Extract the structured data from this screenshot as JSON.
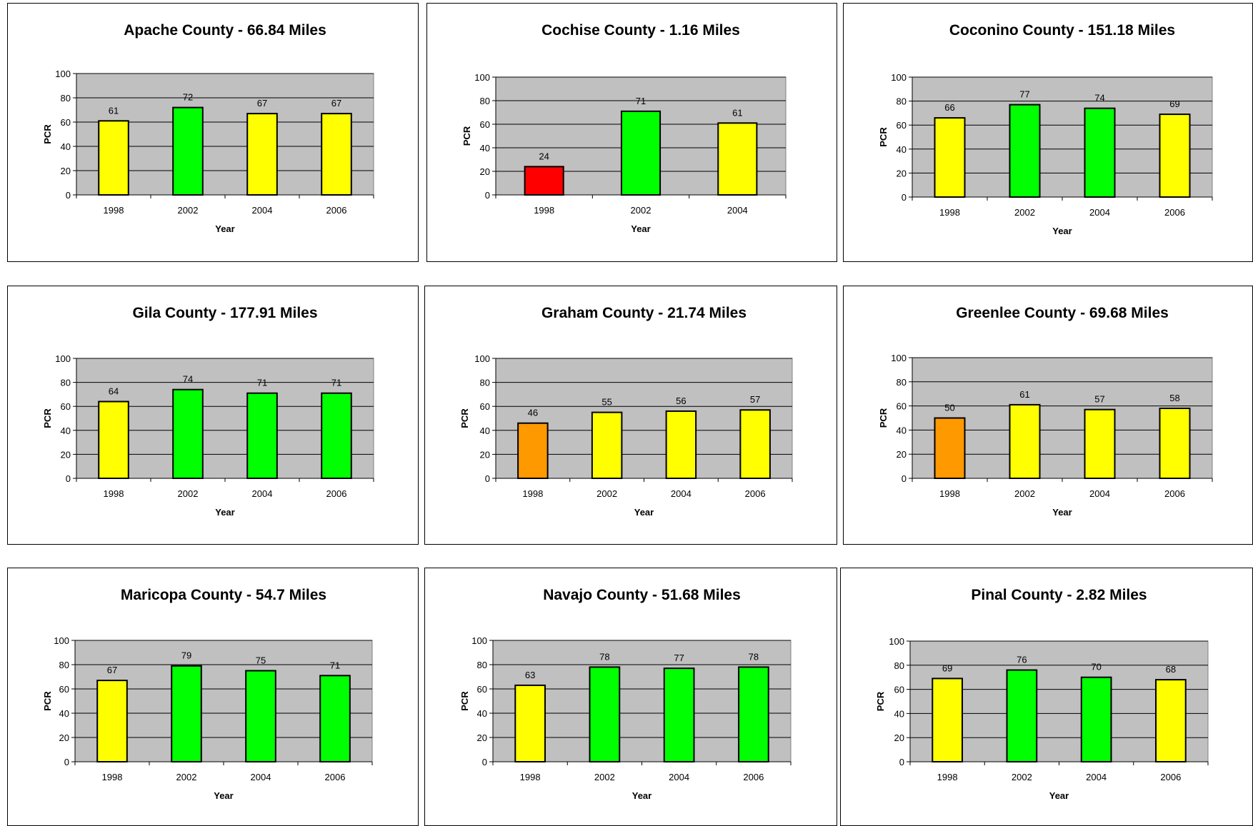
{
  "chart_data": [
    {
      "type": "bar",
      "title": "Apache County - 66.84 Miles",
      "xlabel": "Year",
      "ylabel": "PCR",
      "ylim": [
        0,
        100
      ],
      "yticks": [
        0,
        20,
        40,
        60,
        80,
        100
      ],
      "categories": [
        "1998",
        "2002",
        "2004",
        "2006"
      ],
      "values": [
        61,
        72,
        67,
        67
      ],
      "colors": [
        "#ffff00",
        "#00ff00",
        "#ffff00",
        "#ffff00"
      ],
      "grid": true
    },
    {
      "type": "bar",
      "title": "Cochise County - 1.16 Miles",
      "xlabel": "Year",
      "ylabel": "PCR",
      "ylim": [
        0,
        100
      ],
      "yticks": [
        0,
        20,
        40,
        60,
        80,
        100
      ],
      "categories": [
        "1998",
        "2002",
        "2004"
      ],
      "values": [
        24,
        71,
        61
      ],
      "colors": [
        "#ff0000",
        "#00ff00",
        "#ffff00"
      ],
      "grid": true
    },
    {
      "type": "bar",
      "title": "Coconino County - 151.18 Miles",
      "xlabel": "Year",
      "ylabel": "PCR",
      "ylim": [
        0,
        100
      ],
      "yticks": [
        0,
        20,
        40,
        60,
        80,
        100
      ],
      "categories": [
        "1998",
        "2002",
        "2004",
        "2006"
      ],
      "values": [
        66,
        77,
        74,
        69
      ],
      "colors": [
        "#ffff00",
        "#00ff00",
        "#00ff00",
        "#ffff00"
      ],
      "grid": true
    },
    {
      "type": "bar",
      "title": "Gila County - 177.91 Miles",
      "xlabel": "Year",
      "ylabel": "PCR",
      "ylim": [
        0,
        100
      ],
      "yticks": [
        0,
        20,
        40,
        60,
        80,
        100
      ],
      "categories": [
        "1998",
        "2002",
        "2004",
        "2006"
      ],
      "values": [
        64,
        74,
        71,
        71
      ],
      "colors": [
        "#ffff00",
        "#00ff00",
        "#00ff00",
        "#00ff00"
      ],
      "grid": true
    },
    {
      "type": "bar",
      "title": "Graham County - 21.74 Miles",
      "xlabel": "Year",
      "ylabel": "PCR",
      "ylim": [
        0,
        100
      ],
      "yticks": [
        0,
        20,
        40,
        60,
        80,
        100
      ],
      "categories": [
        "1998",
        "2002",
        "2004",
        "2006"
      ],
      "values": [
        46,
        55,
        56,
        57
      ],
      "colors": [
        "#ff9900",
        "#ffff00",
        "#ffff00",
        "#ffff00"
      ],
      "grid": true
    },
    {
      "type": "bar",
      "title": "Greenlee County - 69.68 Miles",
      "xlabel": "Year",
      "ylabel": "PCR",
      "ylim": [
        0,
        100
      ],
      "yticks": [
        0,
        20,
        40,
        60,
        80,
        100
      ],
      "categories": [
        "1998",
        "2002",
        "2004",
        "2006"
      ],
      "values": [
        50,
        61,
        57,
        58
      ],
      "colors": [
        "#ff9900",
        "#ffff00",
        "#ffff00",
        "#ffff00"
      ],
      "grid": true
    },
    {
      "type": "bar",
      "title": "Maricopa County - 54.7 Miles",
      "xlabel": "Year",
      "ylabel": "PCR",
      "ylim": [
        0,
        100
      ],
      "yticks": [
        0,
        20,
        40,
        60,
        80,
        100
      ],
      "categories": [
        "1998",
        "2002",
        "2004",
        "2006"
      ],
      "values": [
        67,
        79,
        75,
        71
      ],
      "colors": [
        "#ffff00",
        "#00ff00",
        "#00ff00",
        "#00ff00"
      ],
      "grid": true
    },
    {
      "type": "bar",
      "title": "Navajo County - 51.68 Miles",
      "xlabel": "Year",
      "ylabel": "PCR",
      "ylim": [
        0,
        100
      ],
      "yticks": [
        0,
        20,
        40,
        60,
        80,
        100
      ],
      "categories": [
        "1998",
        "2002",
        "2004",
        "2006"
      ],
      "values": [
        63,
        78,
        77,
        78
      ],
      "colors": [
        "#ffff00",
        "#00ff00",
        "#00ff00",
        "#00ff00"
      ],
      "grid": true
    },
    {
      "type": "bar",
      "title": "Pinal County - 2.82 Miles",
      "xlabel": "Year",
      "ylabel": "PCR",
      "ylim": [
        0,
        100
      ],
      "yticks": [
        0,
        20,
        40,
        60,
        80,
        100
      ],
      "categories": [
        "1998",
        "2002",
        "2004",
        "2006"
      ],
      "values": [
        69,
        76,
        70,
        68
      ],
      "colors": [
        "#ffff00",
        "#00ff00",
        "#00ff00",
        "#ffff00"
      ],
      "grid": true
    }
  ]
}
